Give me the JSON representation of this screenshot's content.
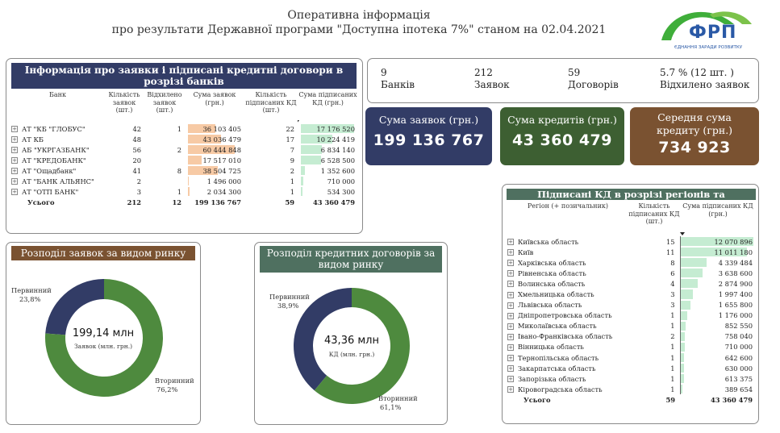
{
  "header": {
    "title_line1": "Оперативна інформація",
    "title_line2": "про результати Державної програми \"Доступна іпотека 7%\" станом на 02.04.2021"
  },
  "logo": {
    "text": "ФРП",
    "tagline": "ЄДНАННЯ ЗАРАДИ РОЗВИТКУ"
  },
  "banks_table": {
    "title": "Інформація про заявки і підписані кредитні договори в розрізі банків",
    "columns": [
      "Банк",
      "Кількість заявок (шт.)",
      "Відхилено заявок (шт.)",
      "Сума заявок (грн.)",
      "Кількість підписаних КД (шт.)",
      "Сума підписаних КД (грн.)"
    ],
    "rows": [
      {
        "bank": "АТ \"КБ \"ГЛОБУС\"",
        "apps": "42",
        "rejected": "1",
        "apps_sum": "36 103 405",
        "kd": "22",
        "kd_sum": "17 176 520",
        "apps_sum_val": 36103405,
        "kd_sum_val": 17176520
      },
      {
        "bank": "АТ КБ",
        "apps": "48",
        "rejected": "",
        "apps_sum": "43 036 479",
        "kd": "17",
        "kd_sum": "10 224 419",
        "apps_sum_val": 43036479,
        "kd_sum_val": 10224419
      },
      {
        "bank": "АБ \"УКРГАЗБАНК\"",
        "apps": "56",
        "rejected": "2",
        "apps_sum": "60 444 848",
        "kd": "7",
        "kd_sum": "6 834 140",
        "apps_sum_val": 60444848,
        "kd_sum_val": 6834140
      },
      {
        "bank": "АТ \"КРЕДОБАНК\"",
        "apps": "20",
        "rejected": "",
        "apps_sum": "17 517 010",
        "kd": "9",
        "kd_sum": "6 528 500",
        "apps_sum_val": 17517010,
        "kd_sum_val": 6528500
      },
      {
        "bank": "АТ \"Ощадбанк\"",
        "apps": "41",
        "rejected": "8",
        "apps_sum": "38 504 725",
        "kd": "2",
        "kd_sum": "1 352 600",
        "apps_sum_val": 38504725,
        "kd_sum_val": 1352600
      },
      {
        "bank": "АТ \"БАНК АЛЬЯНС\"",
        "apps": "2",
        "rejected": "",
        "apps_sum": "1 496 000",
        "kd": "1",
        "kd_sum": "710 000",
        "apps_sum_val": 1496000,
        "kd_sum_val": 710000
      },
      {
        "bank": "АТ \"ОТП БАНК\"",
        "apps": "3",
        "rejected": "1",
        "apps_sum": "2 034 300",
        "kd": "1",
        "kd_sum": "534 300",
        "apps_sum_val": 2034300,
        "kd_sum_val": 534300
      }
    ],
    "total": {
      "label": "Усього",
      "apps": "212",
      "rejected": "12",
      "apps_sum": "199 136 767",
      "kd": "59",
      "kd_sum": "43 360 479"
    }
  },
  "stats": {
    "banks_value": "9",
    "banks_label": "Банків",
    "apps_value": "212",
    "apps_label": "Заявок",
    "kd_value": "59",
    "kd_label": "Договорів",
    "rejected_value": "5.7 % (12 шт. )",
    "rejected_label": "Відхилено заявок"
  },
  "cards": {
    "apps_sum_label": "Сума заявок (грн.)",
    "apps_sum_value": "199 136 767",
    "credits_sum_label": "Сума кредитів (грн.)",
    "credits_sum_value": "43 360 479",
    "avg_label": "Середня сума кредиту (грн.)",
    "avg_value": "734 923"
  },
  "donut_apps": {
    "title": "Розподіл заявок за видом ринку",
    "center_value": "199,14 млн",
    "center_label": "Заявок (млн. грн.)",
    "primary_label": "Первинний",
    "primary_pct": "23,8%",
    "primary_val": 23.8,
    "secondary_label": "Вторинний",
    "secondary_pct": "76,2%",
    "secondary_val": 76.2
  },
  "donut_kd": {
    "title": "Розподіл кредитних договорів за видом ринку",
    "center_value": "43,36 млн",
    "center_label": "КД (млн. грн.)",
    "primary_label": "Первинний",
    "primary_pct": "38,9%",
    "primary_val": 38.9,
    "secondary_label": "Вторинний",
    "secondary_pct": "61,1%",
    "secondary_val": 61.1
  },
  "regions_table": {
    "title": "Підписані КД в розрізі регіонів та позичальників",
    "columns": [
      "Регіон (+ позичальник)",
      "Кількість підписаних КД (шт.)",
      "Сума підписаних КД (грн.)"
    ],
    "rows": [
      {
        "region": "Київська область",
        "kd": "15",
        "sum": "12 070 896",
        "val": 12070896
      },
      {
        "region": "Київ",
        "kd": "11",
        "sum": "11 011 180",
        "val": 11011180
      },
      {
        "region": "Харківська область",
        "kd": "8",
        "sum": "4 339 484",
        "val": 4339484
      },
      {
        "region": "Рівненська область",
        "kd": "6",
        "sum": "3 638 600",
        "val": 3638600
      },
      {
        "region": "Волинська область",
        "kd": "4",
        "sum": "2 874 900",
        "val": 2874900
      },
      {
        "region": "Хмельницька область",
        "kd": "3",
        "sum": "1 997 400",
        "val": 1997400
      },
      {
        "region": "Львівська область",
        "kd": "3",
        "sum": "1 655 800",
        "val": 1655800
      },
      {
        "region": "Дніпропетровська область",
        "kd": "1",
        "sum": "1 176 000",
        "val": 1176000
      },
      {
        "region": "Миколаївська область",
        "kd": "1",
        "sum": "852 550",
        "val": 852550
      },
      {
        "region": "Івано-Франківська область",
        "kd": "2",
        "sum": "758 040",
        "val": 758040
      },
      {
        "region": "Вінницька область",
        "kd": "1",
        "sum": "710 000",
        "val": 710000
      },
      {
        "region": "Тернопільська область",
        "kd": "1",
        "sum": "642 600",
        "val": 642600
      },
      {
        "region": "Закарпатська область",
        "kd": "1",
        "sum": "630 000",
        "val": 630000
      },
      {
        "region": "Запорізька область",
        "kd": "1",
        "sum": "613 375",
        "val": 613375
      },
      {
        "region": "Кіровоградська область",
        "kd": "1",
        "sum": "389 654",
        "val": 389654
      }
    ],
    "total": {
      "label": "Усього",
      "kd": "59",
      "sum": "43 360 479"
    }
  },
  "colors": {
    "navy": "#323c66",
    "green": "#4e8a3e",
    "dark_green": "#3d5f32",
    "brown": "#7a5231",
    "teal_header": "#4f7060",
    "peach_bar": "#f7caa5",
    "mint_bar": "#c5ecd2",
    "sort_arrow": "#222"
  }
}
